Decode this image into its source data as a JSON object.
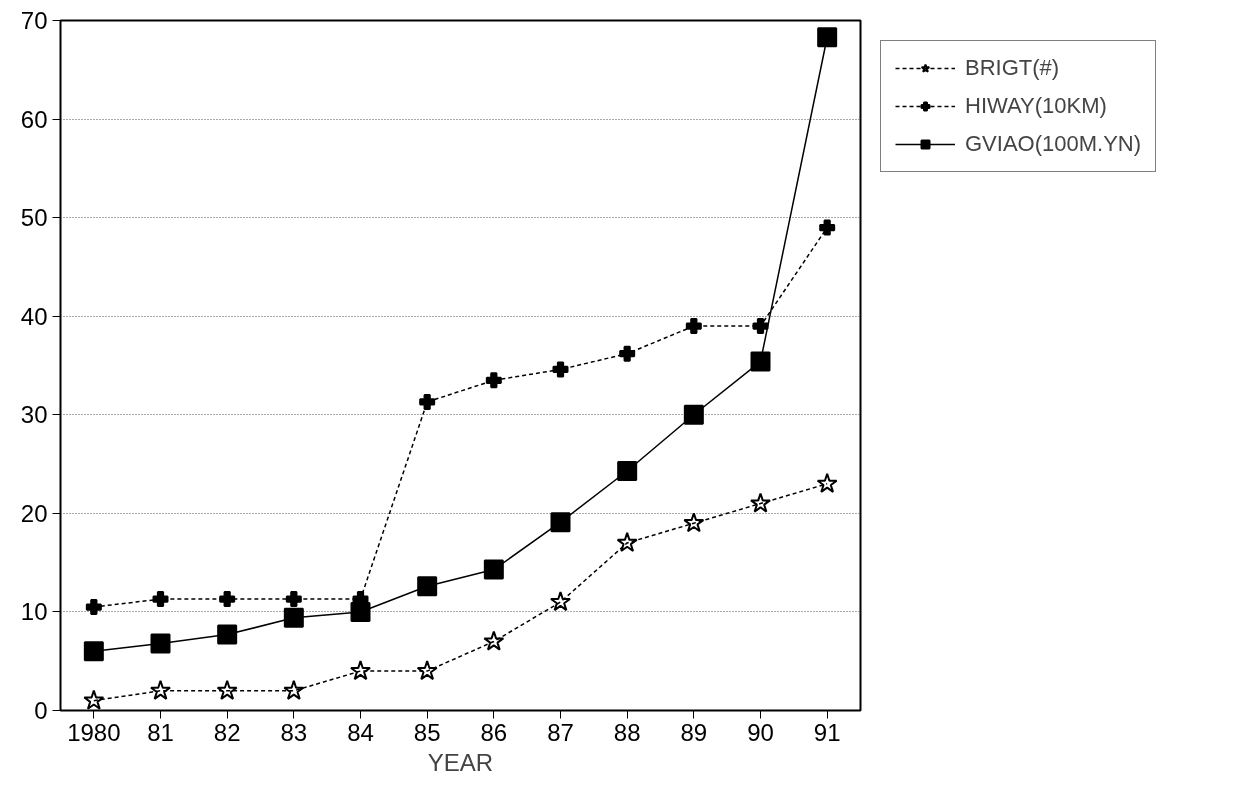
{
  "chart_data": {
    "type": "line",
    "xlabel": "YEAR",
    "x": [
      1980,
      1981,
      1982,
      1983,
      1984,
      1985,
      1986,
      1987,
      1988,
      1989,
      1990,
      1991
    ],
    "series": [
      {
        "name": "BRIGT(#)",
        "color": "#000000",
        "marker": "star",
        "line_style": "dashed",
        "values": [
          1,
          2,
          2,
          2,
          4,
          4,
          7,
          11,
          17,
          19,
          21,
          23
        ]
      },
      {
        "name": "HIWAY(10KM)",
        "color": "#000000",
        "marker": "cross",
        "line_style": "dashed",
        "values": [
          10.5,
          11.3,
          11.3,
          11.3,
          11.3,
          31.3,
          33.5,
          34.6,
          36.2,
          39,
          39,
          49
        ]
      },
      {
        "name": "GVIAO(100M.YN)",
        "color": "#000000",
        "marker": "square",
        "line_style": "solid",
        "values": [
          6,
          6.8,
          7.7,
          9.4,
          10,
          12.6,
          14.3,
          19.1,
          24.3,
          30,
          35.4,
          68.3
        ]
      }
    ],
    "xlim": [
      1979.5,
      1991.5
    ],
    "xticks": [
      {
        "value": 1980,
        "label": "1980"
      },
      {
        "value": 1981,
        "label": "81"
      },
      {
        "value": 1982,
        "label": "82"
      },
      {
        "value": 1983,
        "label": "83"
      },
      {
        "value": 1984,
        "label": "84"
      },
      {
        "value": 1985,
        "label": "85"
      },
      {
        "value": 1986,
        "label": "86"
      },
      {
        "value": 1987,
        "label": "87"
      },
      {
        "value": 1988,
        "label": "88"
      },
      {
        "value": 1989,
        "label": "89"
      },
      {
        "value": 1990,
        "label": "90"
      },
      {
        "value": 1991,
        "label": "91"
      }
    ],
    "ylim": [
      0,
      70
    ],
    "yticks": [
      0,
      10,
      20,
      30,
      40,
      50,
      60,
      70
    ],
    "grid": "y",
    "legend": "top right"
  }
}
